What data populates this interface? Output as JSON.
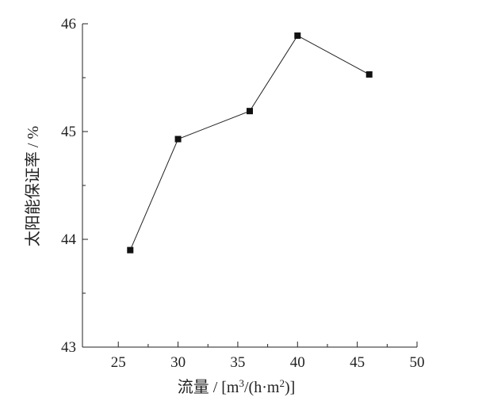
{
  "chart_data": {
    "type": "line",
    "x": [
      26,
      30,
      36,
      40,
      46
    ],
    "y": [
      43.9,
      44.93,
      45.19,
      45.89,
      45.53
    ],
    "xlim": [
      22,
      50
    ],
    "ylim": [
      43,
      46
    ],
    "xticks": [
      25,
      30,
      35,
      40,
      45,
      50
    ],
    "yticks": [
      43,
      44,
      45,
      46
    ],
    "x_minor_step": 2.5,
    "y_minor_step": 0.5,
    "xlabel_parts": {
      "prefix": "流量 / [m",
      "sup1": "3",
      "middle": "/(h·m",
      "sup2": "2",
      "suffix": ")]"
    },
    "ylabel": "太阳能保证率 / %",
    "marker": "square",
    "grid": false,
    "line_color": "#222222"
  }
}
